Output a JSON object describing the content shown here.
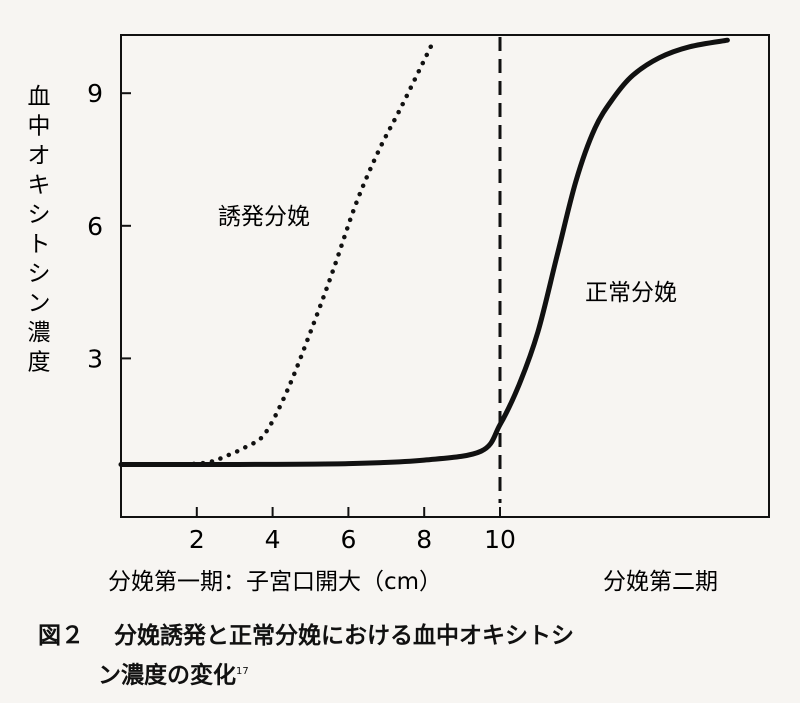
{
  "chart_data": {
    "type": "line",
    "xlabel_left": "分娩第一期：子宮口開大（cm）",
    "xlabel_right": "分娩第二期",
    "ylabel": "血中オキシトシン濃度",
    "x_ticks": [
      "2",
      "4",
      "6",
      "8",
      "10"
    ],
    "y_ticks": [
      "3",
      "6",
      "9"
    ],
    "divider_x": 10,
    "series": [
      {
        "name": "誘発分娩",
        "style": "dotted",
        "points": [
          [
            0,
            0.6
          ],
          [
            1.5,
            0.6
          ],
          [
            2.3,
            0.65
          ],
          [
            2.8,
            0.8
          ],
          [
            3.3,
            1.0
          ],
          [
            3.8,
            1.3
          ],
          [
            4.4,
            2.3
          ],
          [
            5.0,
            3.6
          ],
          [
            5.6,
            5.0
          ],
          [
            6.2,
            6.5
          ],
          [
            6.8,
            7.7
          ],
          [
            7.4,
            8.7
          ],
          [
            8.2,
            10.1
          ]
        ]
      },
      {
        "name": "正常分娩",
        "style": "solid",
        "points": [
          [
            0,
            0.6
          ],
          [
            3,
            0.6
          ],
          [
            6,
            0.62
          ],
          [
            8,
            0.7
          ],
          [
            9.5,
            0.9
          ],
          [
            10,
            1.5
          ],
          [
            10.5,
            2.4
          ],
          [
            11,
            3.6
          ],
          [
            11.5,
            5.3
          ],
          [
            12,
            7.0
          ],
          [
            12.5,
            8.2
          ],
          [
            13,
            8.9
          ],
          [
            13.5,
            9.4
          ],
          [
            14.2,
            9.8
          ],
          [
            15,
            10.05
          ],
          [
            16,
            10.2
          ]
        ]
      }
    ]
  },
  "caption": {
    "number": "図２",
    "text1": "分娩誘発と正常分娩における血中オキシトシ",
    "text2": "ン濃度の変化",
    "ref": "17"
  }
}
